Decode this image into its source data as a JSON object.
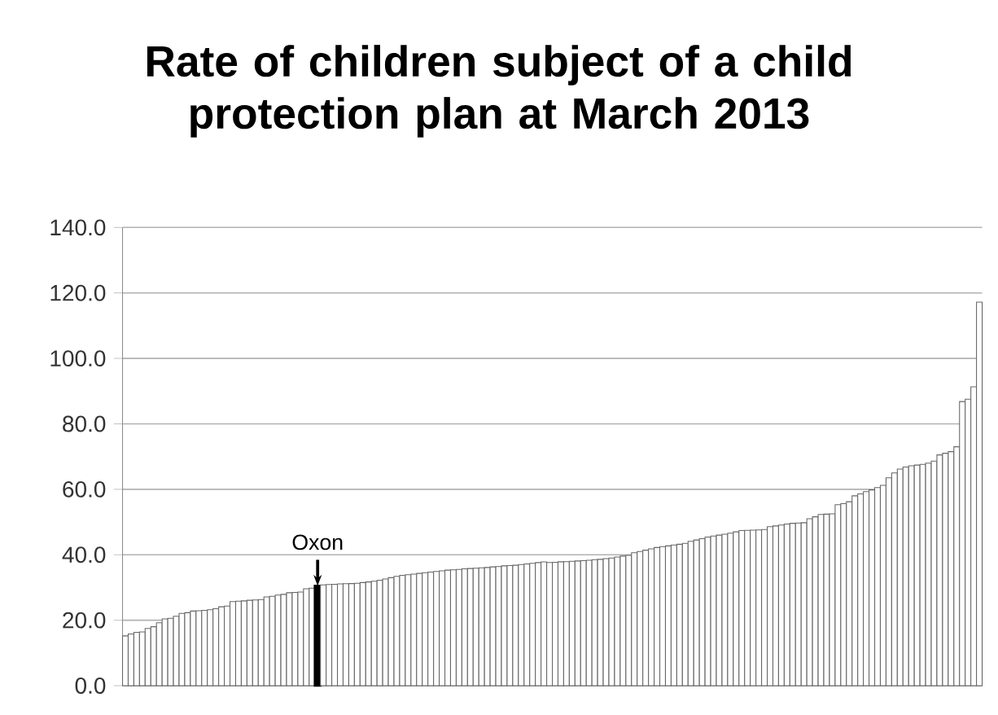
{
  "chart_data": {
    "type": "bar",
    "title": "Rate of children subject of a child protection plan at March 2013",
    "categories": [
      null,
      null,
      null,
      null,
      null,
      null,
      null,
      null,
      null,
      null,
      null,
      null,
      null,
      null,
      null,
      null,
      null,
      null,
      null,
      null,
      null,
      null,
      null,
      null,
      null,
      null,
      null,
      null,
      null,
      null,
      null,
      null,
      null,
      null,
      null,
      null,
      null,
      null,
      null,
      null,
      null,
      null,
      null,
      null,
      null,
      null,
      null,
      null,
      null,
      null,
      null,
      null,
      null,
      null,
      null,
      null,
      null,
      null,
      null,
      null,
      null,
      null,
      null,
      null,
      null,
      null,
      null,
      null,
      null,
      null,
      null,
      null,
      null,
      null,
      null,
      null,
      null,
      null,
      null,
      null,
      null,
      null,
      null,
      null,
      null,
      null,
      null,
      null,
      null,
      null,
      null,
      null,
      null,
      null,
      null,
      null,
      null,
      null,
      null,
      null,
      null,
      null,
      null,
      null,
      null,
      null,
      null,
      null,
      null,
      null,
      null,
      null,
      null,
      null,
      null,
      null,
      null,
      null,
      null,
      null,
      null,
      null,
      null,
      null,
      null,
      null,
      null,
      null,
      null,
      null,
      null,
      null,
      null,
      null,
      null,
      null,
      null,
      null,
      null,
      null,
      null,
      null,
      null,
      null,
      null,
      null,
      null,
      null,
      null,
      null,
      null,
      null
    ],
    "values": [
      15.2,
      15.8,
      16.3,
      16.4,
      17.5,
      18,
      19.2,
      20.4,
      20.6,
      21.2,
      22.1,
      22.3,
      22.8,
      22.9,
      23,
      23.2,
      23.5,
      24.1,
      24.3,
      25.7,
      25.8,
      25.9,
      26.1,
      26.2,
      26.3,
      27.1,
      27.3,
      27.7,
      27.9,
      28.4,
      28.5,
      28.6,
      29.6,
      29.8,
      30.5,
      30.8,
      30.9,
      31,
      31.1,
      31.15,
      31.2,
      31.3,
      31.5,
      31.7,
      31.9,
      32.2,
      32.6,
      33,
      33.4,
      33.7,
      33.9,
      34.1,
      34.3,
      34.5,
      34.7,
      34.9,
      35.1,
      35.3,
      35.4,
      35.5,
      35.7,
      35.8,
      35.9,
      36,
      36.1,
      36.3,
      36.4,
      36.6,
      36.7,
      36.8,
      37,
      37.2,
      37.4,
      37.6,
      37.8,
      37.65,
      37.7,
      37.85,
      37.9,
      38,
      38.1,
      38.2,
      38.3,
      38.5,
      38.6,
      38.8,
      39,
      39.3,
      39.6,
      39.8,
      40.6,
      41,
      41.4,
      41.8,
      42.2,
      42.5,
      42.7,
      43,
      43.2,
      43.5,
      44.1,
      44.5,
      44.9,
      45.4,
      45.7,
      46,
      46.3,
      46.6,
      47,
      47.4,
      47.45,
      47.5,
      47.6,
      47.7,
      48.6,
      48.8,
      49.1,
      49.4,
      49.6,
      49.7,
      49.8,
      51,
      51.6,
      52.3,
      52.4,
      52.5,
      55.3,
      55.6,
      56.2,
      58,
      58.6,
      59.3,
      59.8,
      60.5,
      61.2,
      63.5,
      65,
      66.2,
      66.8,
      67.2,
      67.4,
      67.6,
      68,
      68.6,
      70.5,
      71,
      71.5,
      73,
      86.8,
      87.5,
      91.3,
      117.2
    ],
    "colors": [
      "#ffffff",
      "#ffffff",
      "#ffffff",
      "#ffffff",
      "#ffffff",
      "#ffffff",
      "#ffffff",
      "#ffffff",
      "#ffffff",
      "#ffffff",
      "#ffffff",
      "#ffffff",
      "#ffffff",
      "#ffffff",
      "#ffffff",
      "#ffffff",
      "#ffffff",
      "#ffffff",
      "#ffffff",
      "#ffffff",
      "#ffffff",
      "#ffffff",
      "#ffffff",
      "#ffffff",
      "#ffffff",
      "#ffffff",
      "#ffffff",
      "#ffffff",
      "#ffffff",
      "#ffffff",
      "#ffffff",
      "#ffffff",
      "#ffffff",
      "#ffffff",
      "#000000",
      "#ffffff",
      "#ffffff",
      "#ffffff",
      "#ffffff",
      "#ffffff",
      "#ffffff",
      "#ffffff",
      "#ffffff",
      "#ffffff",
      "#ffffff",
      "#ffffff",
      "#ffffff",
      "#ffffff",
      "#ffffff",
      "#ffffff",
      "#ffffff",
      "#ffffff",
      "#ffffff",
      "#ffffff",
      "#ffffff",
      "#ffffff",
      "#ffffff",
      "#ffffff",
      "#ffffff",
      "#ffffff",
      "#ffffff",
      "#ffffff",
      "#ffffff",
      "#ffffff",
      "#ffffff",
      "#ffffff",
      "#ffffff",
      "#ffffff",
      "#ffffff",
      "#ffffff",
      "#ffffff",
      "#ffffff",
      "#ffffff",
      "#ffffff",
      "#ffffff",
      "#ffffff",
      "#ffffff",
      "#ffffff",
      "#ffffff",
      "#ffffff",
      "#ffffff",
      "#ffffff",
      "#ffffff",
      "#ffffff",
      "#ffffff",
      "#ffffff",
      "#ffffff",
      "#ffffff",
      "#ffffff",
      "#ffffff",
      "#ffffff",
      "#ffffff",
      "#ffffff",
      "#ffffff",
      "#ffffff",
      "#ffffff",
      "#ffffff",
      "#ffffff",
      "#ffffff",
      "#ffffff",
      "#ffffff",
      "#ffffff",
      "#ffffff",
      "#ffffff",
      "#ffffff",
      "#ffffff",
      "#ffffff",
      "#ffffff",
      "#ffffff",
      "#ffffff",
      "#ffffff",
      "#ffffff",
      "#ffffff",
      "#ffffff",
      "#ffffff",
      "#ffffff",
      "#ffffff",
      "#ffffff",
      "#ffffff",
      "#ffffff",
      "#ffffff",
      "#ffffff",
      "#ffffff",
      "#ffffff",
      "#ffffff",
      "#ffffff",
      "#ffffff",
      "#ffffff",
      "#ffffff",
      "#ffffff",
      "#ffffff",
      "#ffffff",
      "#ffffff",
      "#ffffff",
      "#ffffff",
      "#ffffff",
      "#ffffff",
      "#ffffff",
      "#ffffff",
      "#ffffff",
      "#ffffff",
      "#ffffff",
      "#ffffff",
      "#ffffff",
      "#ffffff",
      "#ffffff",
      "#ffffff",
      "#ffffff",
      "#ffffff",
      "#ffffff",
      "#ffffff",
      "#ffffff"
    ],
    "ylim": [
      0,
      140
    ],
    "yticks": [
      {
        "value": 0,
        "label": "0.0"
      },
      {
        "value": 20,
        "label": "20.0"
      },
      {
        "value": 40,
        "label": "40.0"
      },
      {
        "value": 60,
        "label": "60.0"
      },
      {
        "value": 80,
        "label": "80.0"
      },
      {
        "value": 100,
        "label": "100.0"
      },
      {
        "value": 120,
        "label": "120.0"
      },
      {
        "value": 140,
        "label": "140.0"
      }
    ],
    "grid": "y",
    "annotations": [
      {
        "text": "Oxon",
        "y": 30.5
      }
    ]
  }
}
